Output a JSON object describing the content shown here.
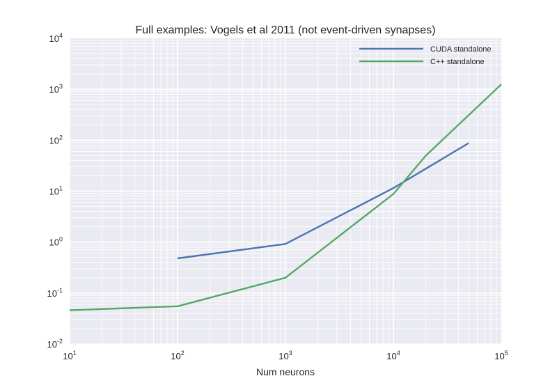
{
  "chart_data": {
    "type": "line",
    "title": "Full examples: Vogels et al 2011 (not event-driven synapses)",
    "xlabel": "Num neurons",
    "ylabel": "",
    "xscale": "log",
    "yscale": "log",
    "xlim": [
      10,
      100000
    ],
    "ylim": [
      0.01,
      10000
    ],
    "grid": true,
    "legend_position": "top-right",
    "x_ticks": [
      {
        "base": "10",
        "exp": "1"
      },
      {
        "base": "10",
        "exp": "2"
      },
      {
        "base": "10",
        "exp": "3"
      },
      {
        "base": "10",
        "exp": "4"
      },
      {
        "base": "10",
        "exp": "5"
      }
    ],
    "y_ticks": [
      {
        "base": "10",
        "exp": "-2"
      },
      {
        "base": "10",
        "exp": "-1"
      },
      {
        "base": "10",
        "exp": "0"
      },
      {
        "base": "10",
        "exp": "1"
      },
      {
        "base": "10",
        "exp": "2"
      },
      {
        "base": "10",
        "exp": "3"
      },
      {
        "base": "10",
        "exp": "4"
      }
    ],
    "series": [
      {
        "name": "CUDA standalone",
        "color": "#4c72b0",
        "x": [
          100,
          1000,
          10000,
          50000
        ],
        "y": [
          0.48,
          0.92,
          11.5,
          88
        ]
      },
      {
        "name": "C++ standalone",
        "color": "#55a868",
        "x": [
          10,
          100,
          1000,
          10000,
          20000,
          100000
        ],
        "y": [
          0.046,
          0.055,
          0.2,
          8.8,
          50,
          1250
        ]
      }
    ]
  }
}
